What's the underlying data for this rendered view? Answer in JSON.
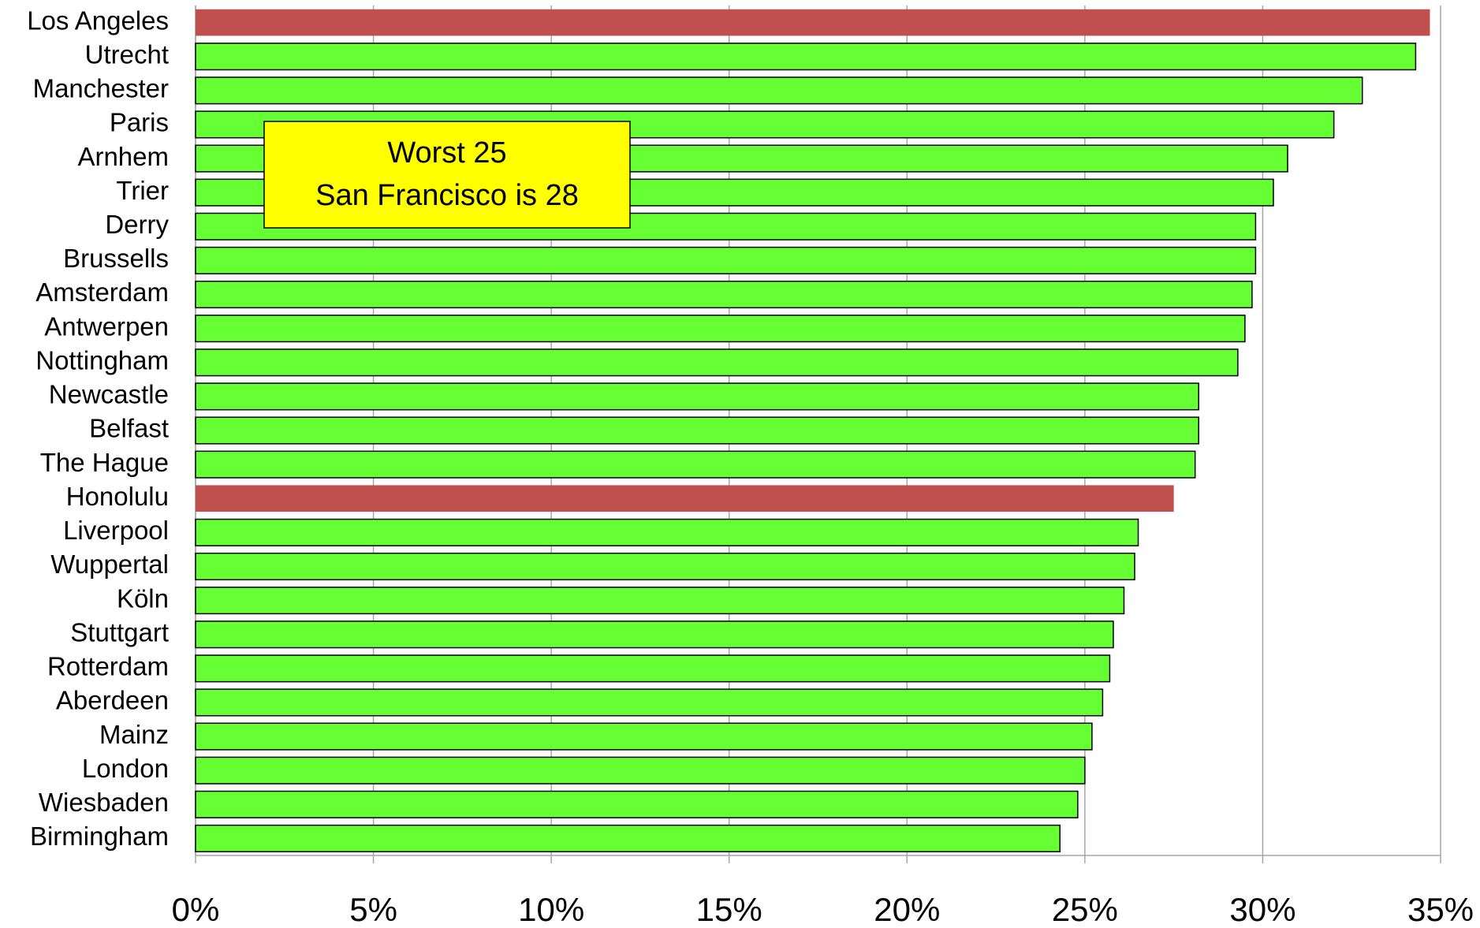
{
  "chart_data": {
    "type": "barh",
    "categories": [
      "Los Angeles",
      "Utrecht",
      "Manchester",
      "Paris",
      "Arnhem",
      "Trier",
      "Derry",
      "Brussells",
      "Amsterdam",
      "Antwerpen",
      "Nottingham",
      "Newcastle",
      "Belfast",
      "The Hague",
      "Honolulu",
      "Liverpool",
      "Wuppertal",
      "Köln",
      "Stuttgart",
      "Rotterdam",
      "Aberdeen",
      "Mainz",
      "London",
      "Wiesbaden",
      "Birmingham"
    ],
    "values": [
      34.7,
      34.3,
      32.8,
      32.0,
      30.7,
      30.3,
      29.8,
      29.8,
      29.7,
      29.5,
      29.3,
      28.2,
      28.2,
      28.1,
      27.5,
      26.5,
      26.4,
      26.1,
      25.8,
      25.7,
      25.5,
      25.2,
      25.0,
      24.8,
      24.3
    ],
    "colors": [
      "#c0504d",
      "#66ff33",
      "#66ff33",
      "#66ff33",
      "#66ff33",
      "#66ff33",
      "#66ff33",
      "#66ff33",
      "#66ff33",
      "#66ff33",
      "#66ff33",
      "#66ff33",
      "#66ff33",
      "#66ff33",
      "#c0504d",
      "#66ff33",
      "#66ff33",
      "#66ff33",
      "#66ff33",
      "#66ff33",
      "#66ff33",
      "#66ff33",
      "#66ff33",
      "#66ff33",
      "#66ff33"
    ],
    "xlim": [
      0,
      35
    ],
    "xticks": [
      {
        "value": 0,
        "label": "0%"
      },
      {
        "value": 5,
        "label": "5%"
      },
      {
        "value": 10,
        "label": "10%"
      },
      {
        "value": 15,
        "label": "15%"
      },
      {
        "value": 20,
        "label": "20%"
      },
      {
        "value": 25,
        "label": "25%"
      },
      {
        "value": 30,
        "label": "30%"
      },
      {
        "value": 35,
        "label": "35%"
      }
    ],
    "grid": true,
    "annotation": [
      "Worst  25",
      "San Francisco is 28"
    ]
  }
}
